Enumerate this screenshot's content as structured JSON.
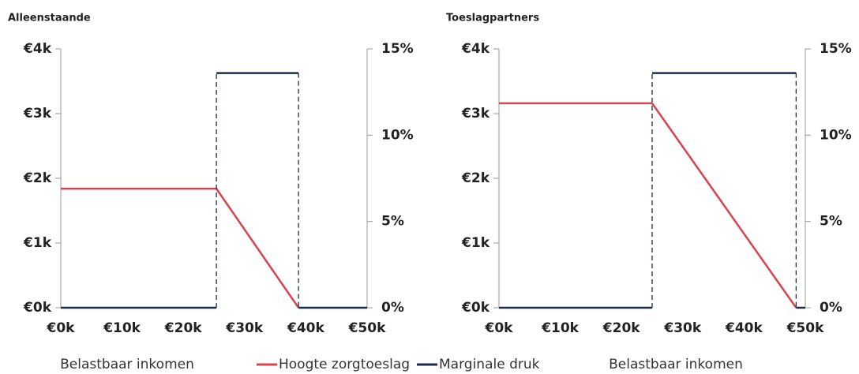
{
  "chart_data": [
    {
      "type": "line",
      "title": "Alleenstaande",
      "xlabel": "Belastbaar inkomen",
      "xlim": [
        0,
        50
      ],
      "xticks": [
        {
          "value": 0,
          "label": "€0k"
        },
        {
          "value": 10,
          "label": "€10k"
        },
        {
          "value": 20,
          "label": "€20k"
        },
        {
          "value": 30,
          "label": "€30k"
        },
        {
          "value": 40,
          "label": "€40k"
        },
        {
          "value": 50,
          "label": "€50k"
        }
      ],
      "ylim": [
        0,
        4
      ],
      "yticks": [
        {
          "value": 0,
          "label": "€0k"
        },
        {
          "value": 1,
          "label": "€1k"
        },
        {
          "value": 2,
          "label": "€2k"
        },
        {
          "value": 3,
          "label": "€3k"
        },
        {
          "value": 4,
          "label": "€4k"
        }
      ],
      "y2lim": [
        0,
        15
      ],
      "y2ticks": [
        {
          "value": 0,
          "label": "0%"
        },
        {
          "value": 5,
          "label": "5%"
        },
        {
          "value": 10,
          "label": "10%"
        },
        {
          "value": 15,
          "label": "15%"
        }
      ],
      "series": [
        {
          "name": "Hoogte zorgtoeslag",
          "color": "#d94350",
          "x": [
            0,
            25.4,
            38.8
          ],
          "values": [
            1.84,
            1.84,
            0
          ]
        },
        {
          "name": "Marginale druk",
          "color": "#1c2b4a",
          "axis": "y2",
          "x": [
            0,
            25.4,
            25.4,
            38.8,
            38.8,
            50
          ],
          "values": [
            0,
            0,
            13.6,
            13.6,
            0,
            0
          ]
        }
      ]
    },
    {
      "type": "line",
      "title": "Toeslagpartners",
      "xlabel": "Belastbaar inkomen",
      "xlim": [
        0,
        50
      ],
      "xticks": [
        {
          "value": 0,
          "label": "€0k"
        },
        {
          "value": 10,
          "label": "€10k"
        },
        {
          "value": 20,
          "label": "€20k"
        },
        {
          "value": 30,
          "label": "€30k"
        },
        {
          "value": 40,
          "label": "€40k"
        },
        {
          "value": 50,
          "label": "€50k"
        }
      ],
      "ylim": [
        0,
        4
      ],
      "yticks": [
        {
          "value": 0,
          "label": "€0k"
        },
        {
          "value": 1,
          "label": "€1k"
        },
        {
          "value": 2,
          "label": "€2k"
        },
        {
          "value": 3,
          "label": "€3k"
        },
        {
          "value": 4,
          "label": "€4k"
        }
      ],
      "y2lim": [
        0,
        15
      ],
      "y2ticks": [
        {
          "value": 0,
          "label": "0%"
        },
        {
          "value": 5,
          "label": "5%"
        },
        {
          "value": 10,
          "label": "10%"
        },
        {
          "value": 15,
          "label": "15%"
        }
      ],
      "series": [
        {
          "color": "#d94350",
          "x": [
            0,
            25.0,
            48.5
          ],
          "values": [
            3.16,
            3.16,
            0
          ]
        },
        {
          "color": "#1c2b4a",
          "axis": "y2",
          "x": [
            0,
            25.0,
            25.0,
            48.5,
            48.5,
            50
          ],
          "values": [
            0,
            0,
            13.6,
            13.6,
            0,
            0
          ]
        }
      ]
    }
  ]
}
